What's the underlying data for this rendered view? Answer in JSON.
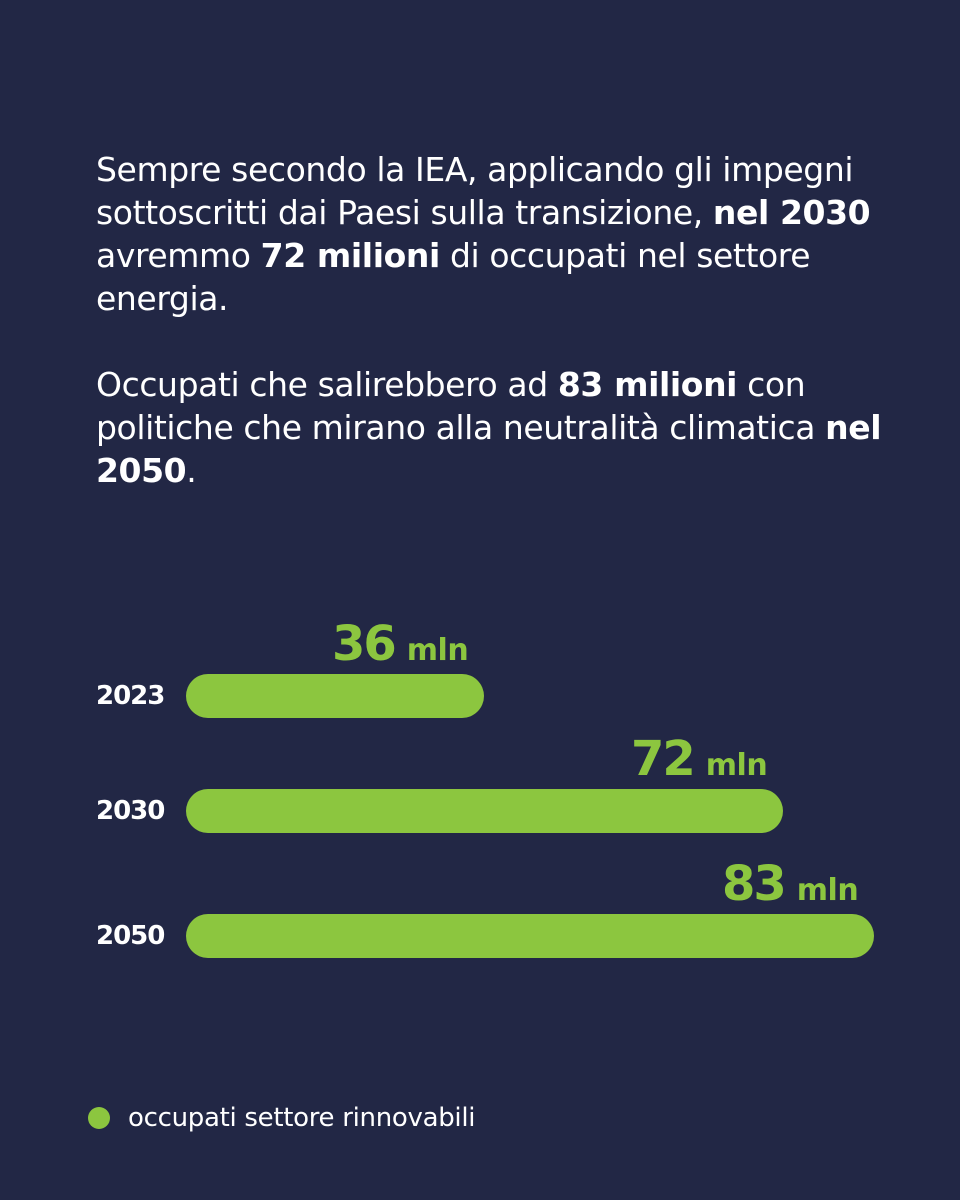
{
  "text": {
    "paragraph1": {
      "part1": "Sempre secondo la IEA, applicando gli impegni sottoscritti dai Paesi sulla transizione, ",
      "bold1": "nel 2030",
      "part2": " avremmo ",
      "bold2": "72 milioni",
      "part3": " di occupati nel settore energia."
    },
    "paragraph2": {
      "part1": "Occupati che salirebbero ad ",
      "bold1": "83 milioni",
      "part2": " con politiche che mirano alla neutralità climatica ",
      "bold2": "nel 2050",
      "part3": "."
    }
  },
  "chart_data": {
    "type": "bar",
    "orientation": "horizontal",
    "categories": [
      "2023",
      "2030",
      "2050"
    ],
    "series": [
      {
        "name": "occupati settore rinnovabili",
        "values": [
          36,
          72,
          83
        ]
      }
    ],
    "value_labels": [
      {
        "number": "36",
        "unit": "mln"
      },
      {
        "number": "72",
        "unit": "mln"
      },
      {
        "number": "83",
        "unit": "mln"
      }
    ],
    "xlim": [
      0,
      83
    ],
    "grid": false,
    "legend_position": "bottom-left",
    "bar_color": "#8cc63f"
  }
}
